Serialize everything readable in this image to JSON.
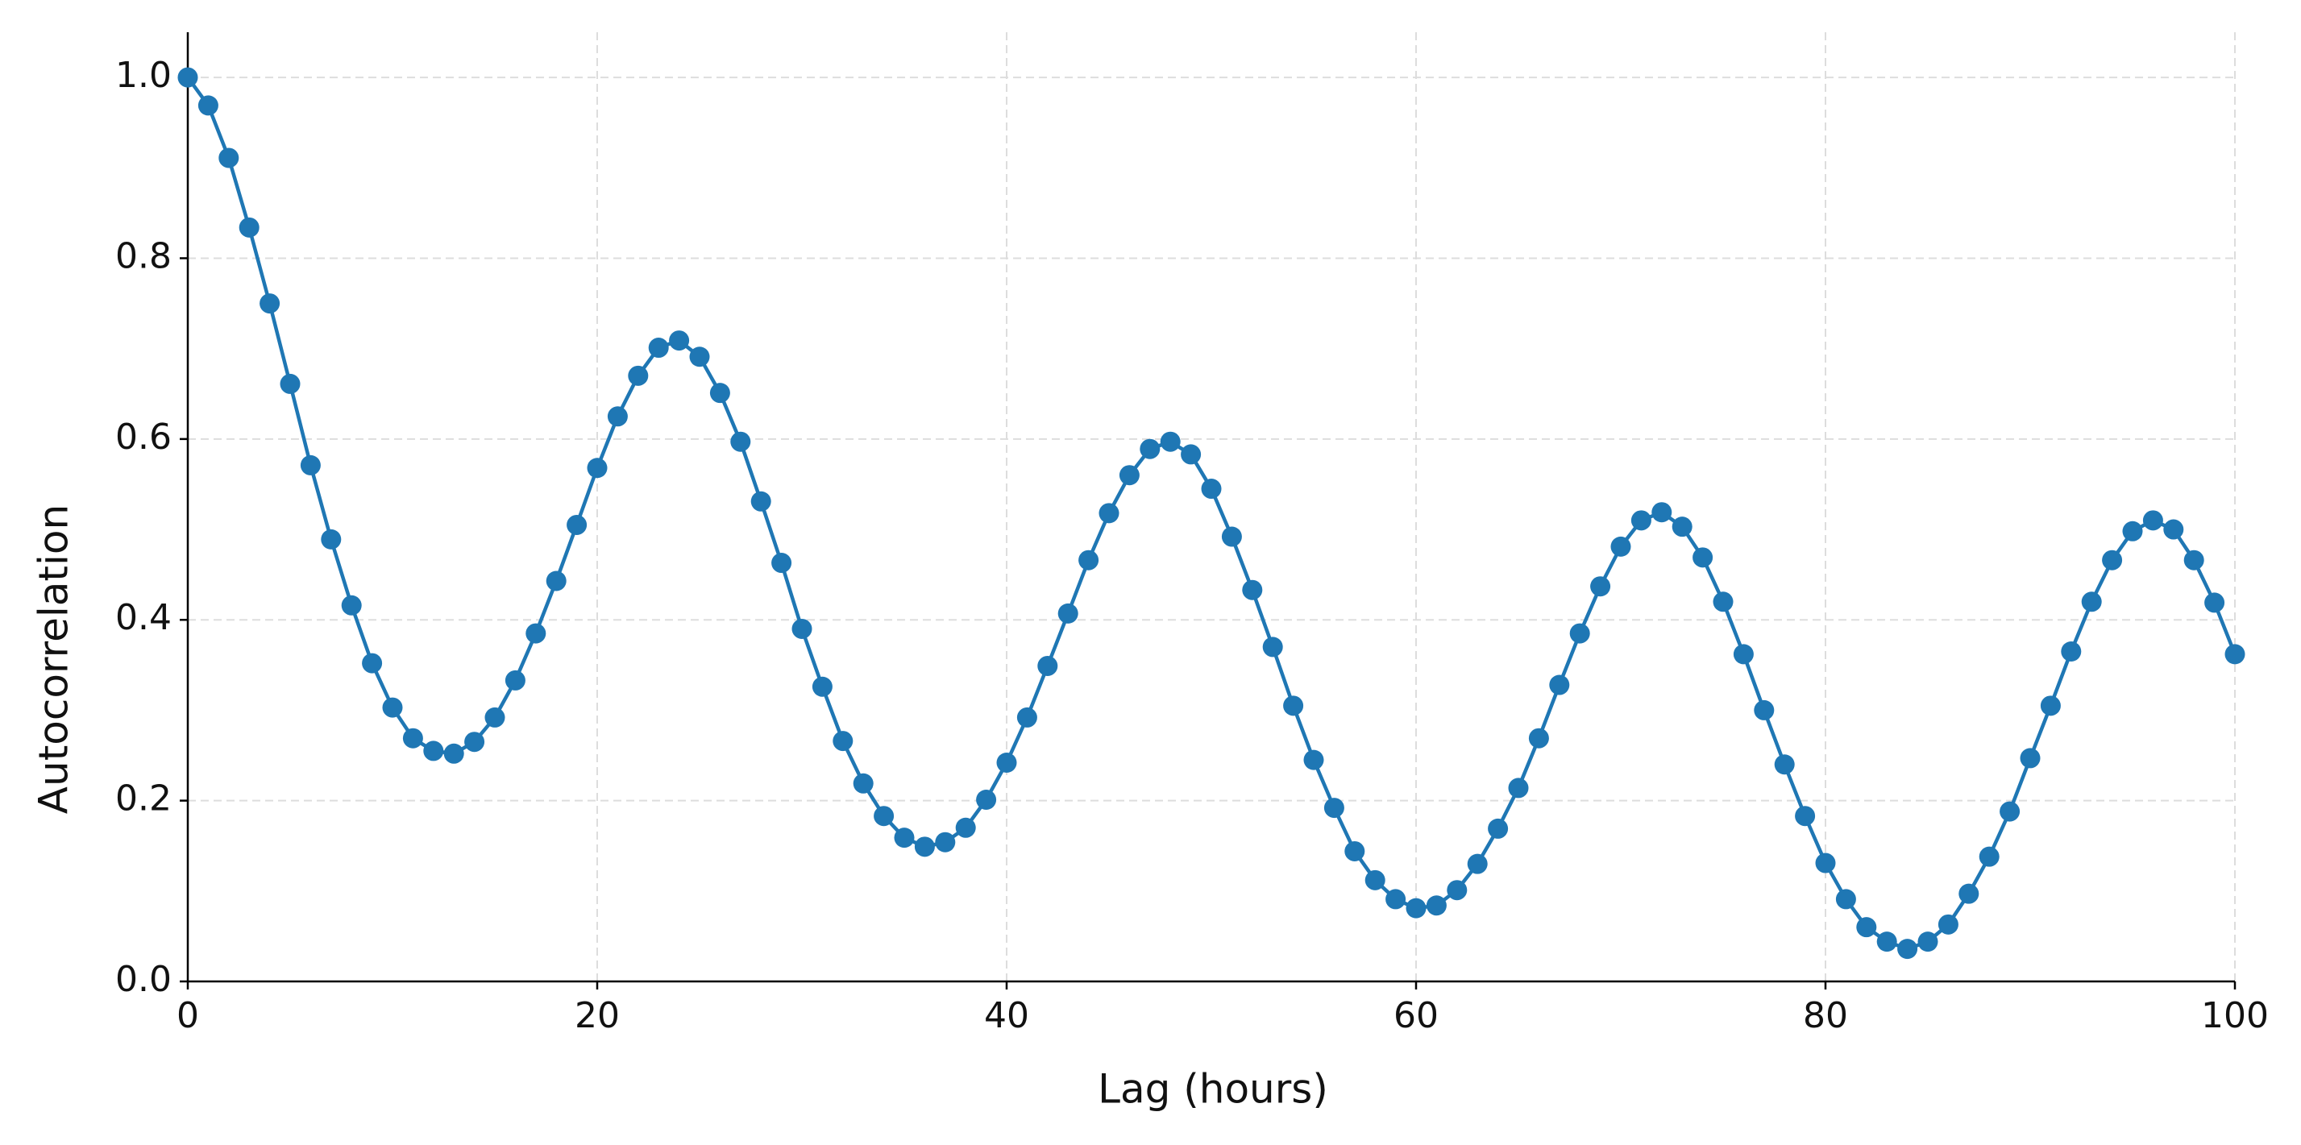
{
  "chart_data": {
    "type": "line",
    "xlabel": "Lag (hours)",
    "ylabel": "Autocorrelation",
    "x": [
      0,
      1,
      2,
      3,
      4,
      5,
      6,
      7,
      8,
      9,
      10,
      11,
      12,
      13,
      14,
      15,
      16,
      17,
      18,
      19,
      20,
      21,
      22,
      23,
      24,
      25,
      26,
      27,
      28,
      29,
      30,
      31,
      32,
      33,
      34,
      35,
      36,
      37,
      38,
      39,
      40,
      41,
      42,
      43,
      44,
      45,
      46,
      47,
      48,
      49,
      50,
      51,
      52,
      53,
      54,
      55,
      56,
      57,
      58,
      59,
      60,
      61,
      62,
      63,
      64,
      65,
      66,
      67,
      68,
      69,
      70,
      71,
      72,
      73,
      74,
      75,
      76,
      77,
      78,
      79,
      80,
      81,
      82,
      83,
      84,
      85,
      86,
      87,
      88,
      89,
      90,
      91,
      92,
      93,
      94,
      95,
      96,
      97,
      98,
      99,
      100
    ],
    "values": [
      1.0,
      0.969,
      0.911,
      0.834,
      0.75,
      0.661,
      0.571,
      0.489,
      0.416,
      0.352,
      0.303,
      0.269,
      0.255,
      0.252,
      0.265,
      0.292,
      0.333,
      0.385,
      0.443,
      0.505,
      0.568,
      0.625,
      0.67,
      0.701,
      0.709,
      0.691,
      0.651,
      0.597,
      0.531,
      0.463,
      0.39,
      0.326,
      0.266,
      0.219,
      0.183,
      0.159,
      0.149,
      0.154,
      0.17,
      0.201,
      0.242,
      0.292,
      0.349,
      0.407,
      0.466,
      0.518,
      0.56,
      0.589,
      0.597,
      0.583,
      0.545,
      0.492,
      0.433,
      0.37,
      0.305,
      0.245,
      0.192,
      0.144,
      0.112,
      0.091,
      0.081,
      0.084,
      0.101,
      0.13,
      0.169,
      0.214,
      0.269,
      0.328,
      0.385,
      0.437,
      0.481,
      0.51,
      0.519,
      0.503,
      0.469,
      0.42,
      0.362,
      0.3,
      0.24,
      0.183,
      0.131,
      0.091,
      0.06,
      0.044,
      0.036,
      0.044,
      0.063,
      0.097,
      0.138,
      0.188,
      0.247,
      0.305,
      0.365,
      0.42,
      0.466,
      0.498,
      0.51,
      0.5,
      0.466,
      0.419,
      0.362
    ],
    "color": "#1f77b4",
    "marker": true,
    "xlim": [
      0,
      100
    ],
    "xticks": [
      0,
      20,
      40,
      60,
      80,
      100
    ],
    "ylim": [
      0,
      1.05
    ],
    "yticks": [
      {
        "value": 0,
        "label": "0.0"
      },
      0.2,
      0.4,
      0.6,
      0.8,
      {
        "value": 1,
        "label": "1.0"
      }
    ],
    "grid": true
  }
}
